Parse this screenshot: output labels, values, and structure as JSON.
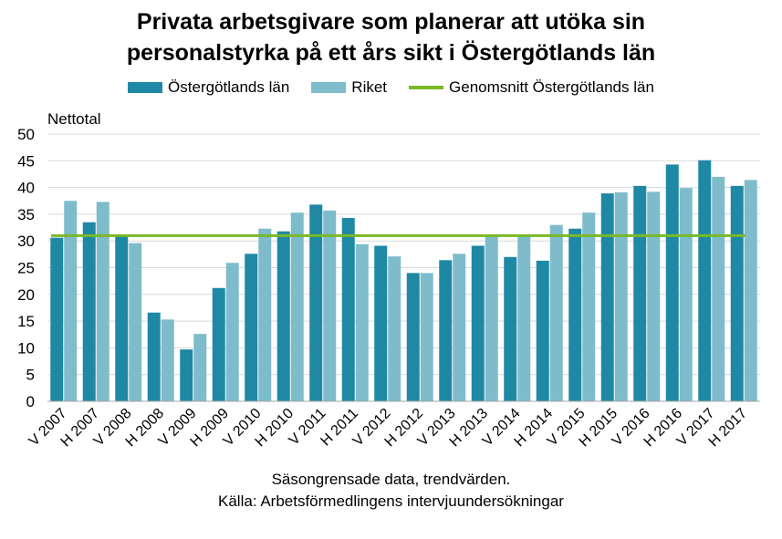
{
  "chart_data": {
    "type": "bar",
    "title_line1": "Privata arbetsgivare som planerar att utöka sin",
    "title_line2": "personalstyrka på ett års sikt i Östergötlands län",
    "ylabel": "Nettotal",
    "ylim": [
      0,
      50
    ],
    "yticks": [
      0,
      5,
      10,
      15,
      20,
      25,
      30,
      35,
      40,
      45,
      50
    ],
    "grid": true,
    "legend_position": "top",
    "categories": [
      "V 2007",
      "H 2007",
      "V 2008",
      "H 2008",
      "V 2009",
      "H 2009",
      "V 2010",
      "H 2010",
      "V 2011",
      "H 2011",
      "V 2012",
      "H 2012",
      "V 2013",
      "H 2013",
      "V 2014",
      "H 2014",
      "V 2015",
      "H 2015",
      "V 2016",
      "H 2016",
      "V 2017",
      "H 2017"
    ],
    "series": [
      {
        "name": "Östergötlands län",
        "color": "#1f88a4",
        "values": [
          30.6,
          33.5,
          31.0,
          16.6,
          9.7,
          21.2,
          27.6,
          31.8,
          36.8,
          34.3,
          29.1,
          24.0,
          26.4,
          29.1,
          27.0,
          26.3,
          32.3,
          38.9,
          40.3,
          44.3,
          45.1,
          40.3
        ]
      },
      {
        "name": "Riket",
        "color": "#7ebccb",
        "values": [
          37.5,
          37.3,
          29.6,
          15.3,
          12.6,
          25.9,
          32.3,
          35.3,
          35.7,
          29.4,
          27.1,
          24.0,
          27.6,
          31.0,
          30.8,
          33.0,
          35.3,
          39.1,
          39.2,
          39.9,
          42.0,
          41.4
        ]
      }
    ],
    "average_line": {
      "name": "Genomsnitt Östergötlands län",
      "value": 31.0,
      "color": "#7ab828"
    },
    "footer_line1": "Säsongrensade data, trendvärden.",
    "footer_line2": "Källa: Arbetsförmedlingens  intervjuundersökningar"
  }
}
